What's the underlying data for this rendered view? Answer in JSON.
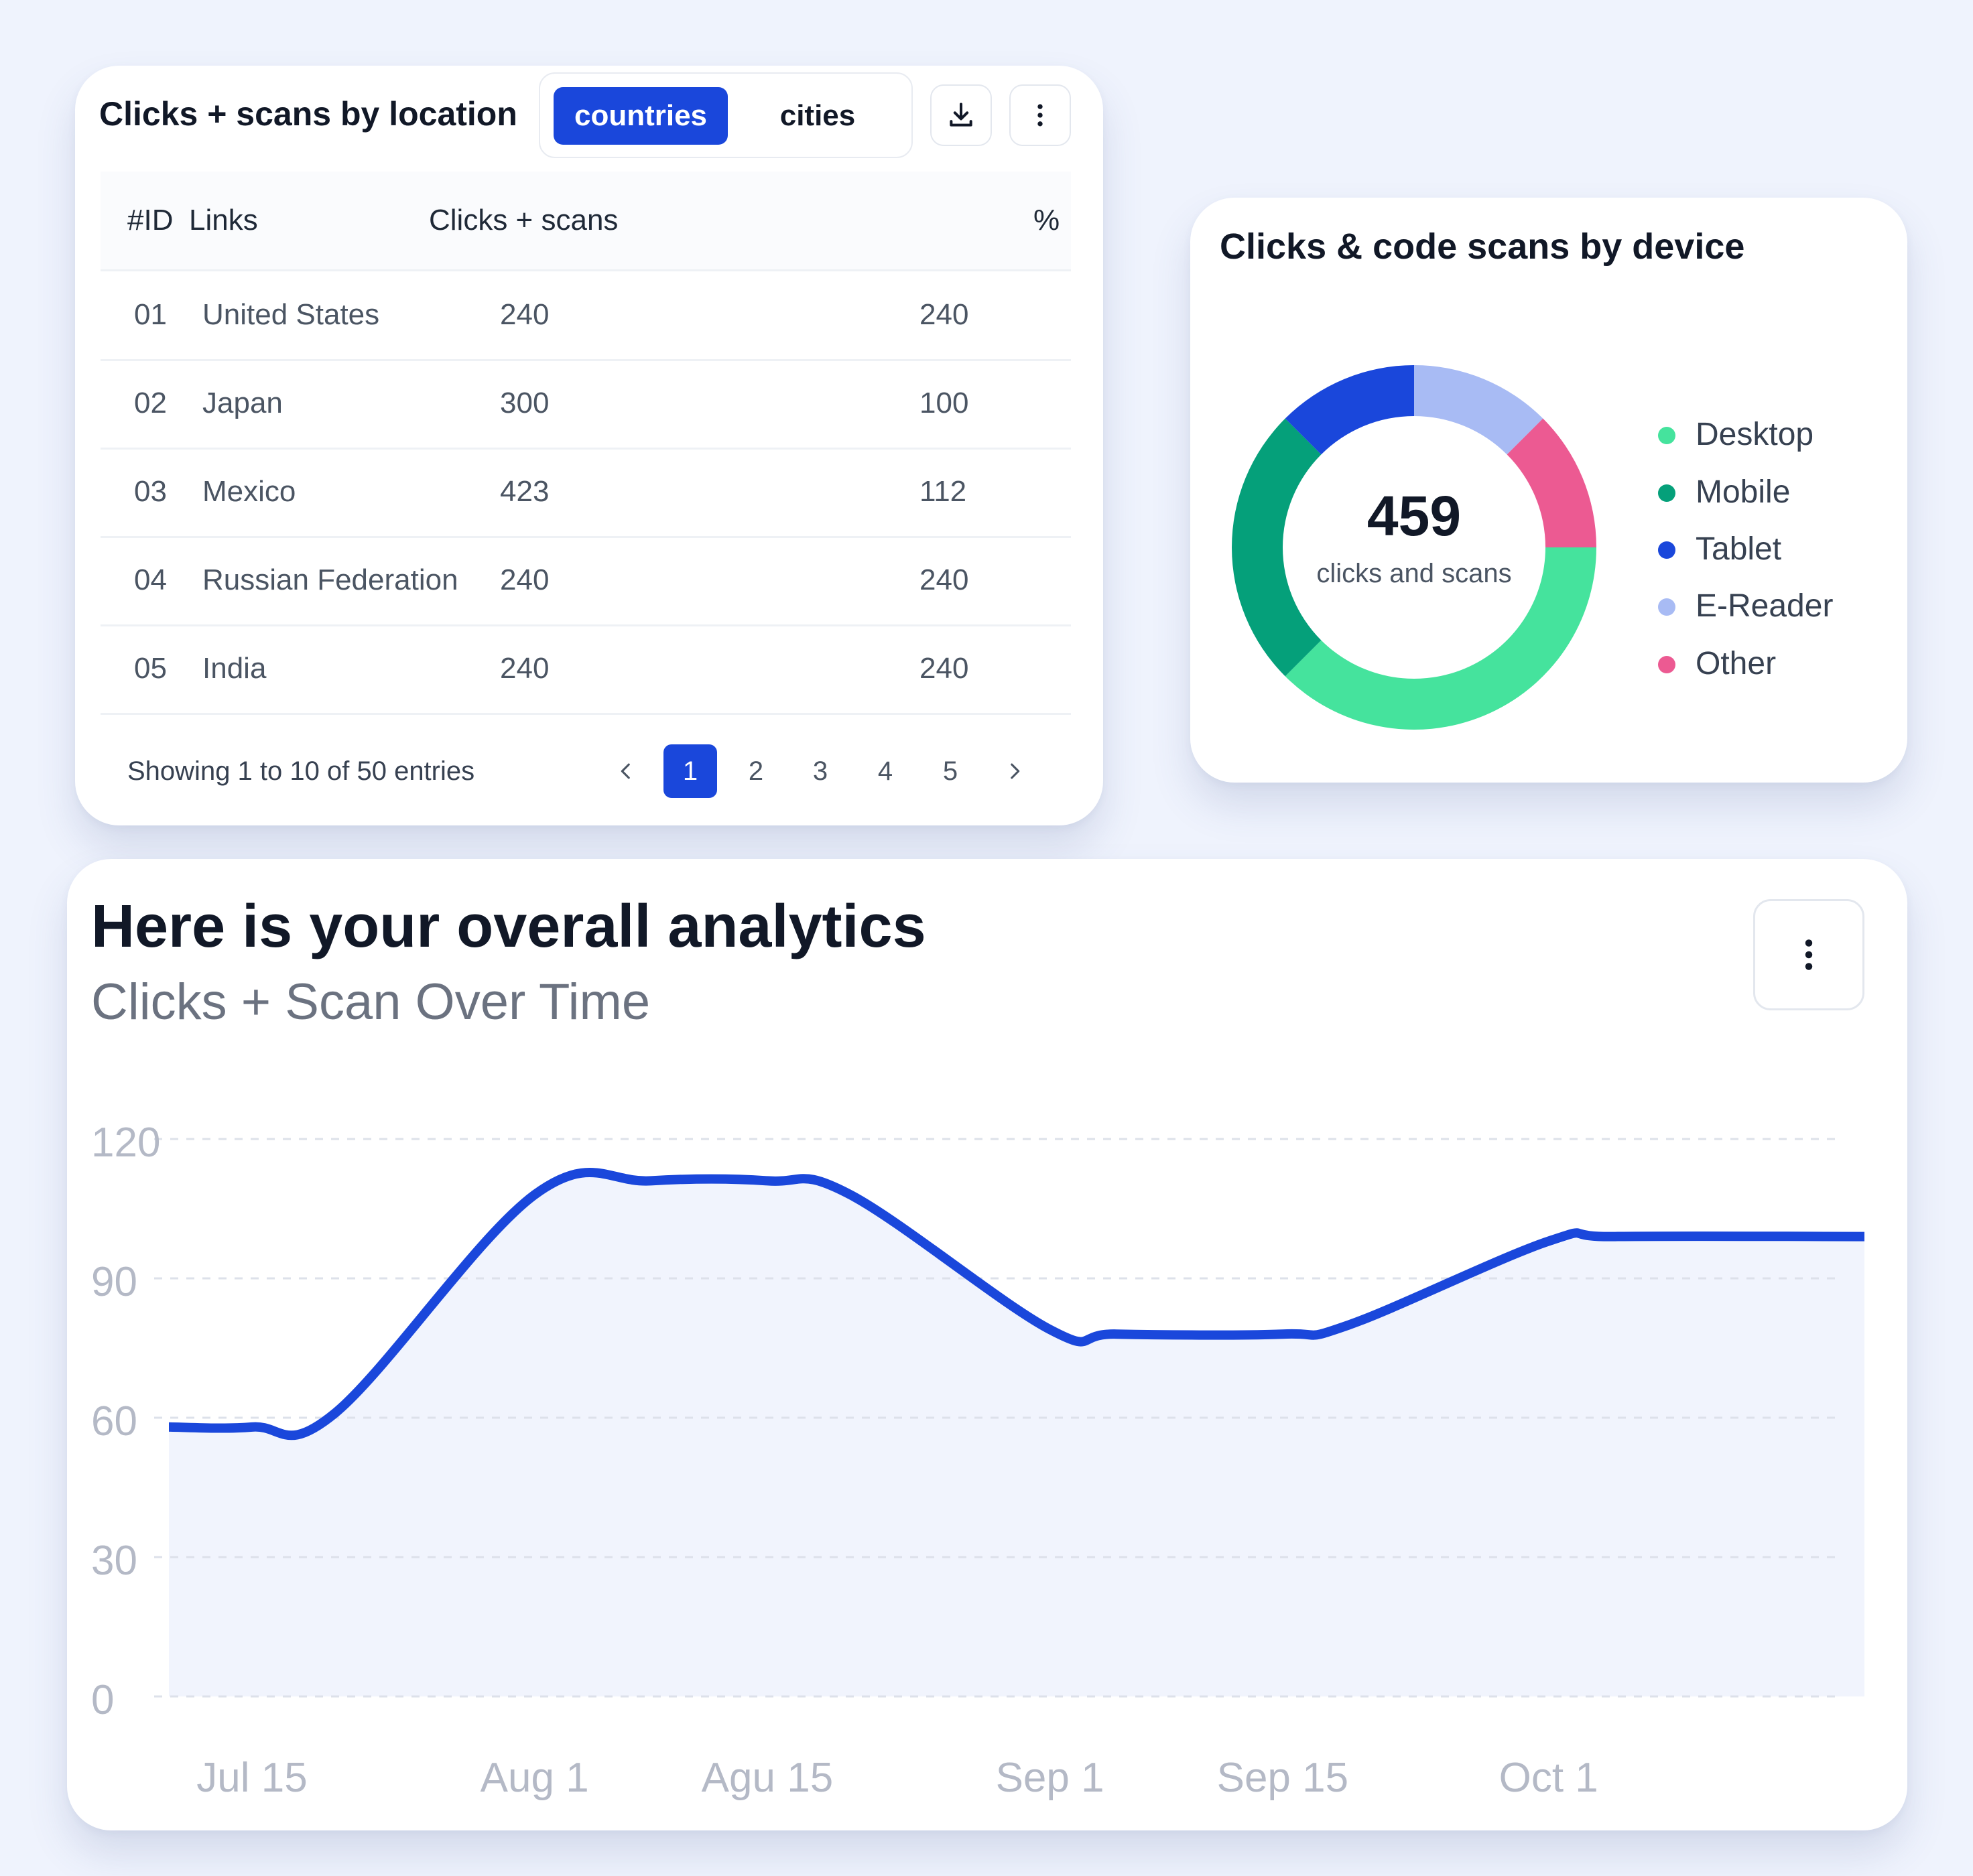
{
  "location_card": {
    "title": "Clicks + scans by location",
    "tabs": [
      {
        "label": "countries",
        "active": true
      },
      {
        "label": "cities",
        "active": false
      }
    ],
    "columns": {
      "id": "#ID",
      "links": "Links",
      "clicks": "Clicks + scans",
      "percent": "%"
    },
    "rows": [
      {
        "id": "01",
        "link": "United States",
        "clicks": "240",
        "percent": "240"
      },
      {
        "id": "02",
        "link": "Japan",
        "clicks": "300",
        "percent": "100"
      },
      {
        "id": "03",
        "link": "Mexico",
        "clicks": "423",
        "percent": "112"
      },
      {
        "id": "04",
        "link": "Russian Federation",
        "clicks": "240",
        "percent": "240"
      },
      {
        "id": "05",
        "link": "India",
        "clicks": "240",
        "percent": "240"
      }
    ],
    "footer_text": "Showing 1 to 10 of 50 entries",
    "pages": [
      "1",
      "2",
      "3",
      "4",
      "5"
    ],
    "active_page": "1",
    "icons": [
      "download-icon",
      "more-vertical-icon",
      "chevron-left-icon",
      "chevron-right-icon"
    ]
  },
  "device_card": {
    "title": "Clicks & code scans by device",
    "total": "459",
    "total_label": "clicks and scans",
    "segments": [
      {
        "name": "Desktop",
        "color": "#45e39d",
        "percent": 37.5
      },
      {
        "name": "Mobile",
        "color": "#05a07a",
        "percent": 25
      },
      {
        "name": "Tablet",
        "color": "#1a47db",
        "percent": 12.5
      },
      {
        "name": "E-Reader",
        "color": "#a8bbf4",
        "percent": 12.5
      },
      {
        "name": "Other",
        "color": "#ec5a92",
        "percent": 12.5
      }
    ]
  },
  "analytics_card": {
    "title": "Here is your overall analytics",
    "subtitle": "Clicks + Scan Over Time",
    "icons": [
      "more-vertical-icon"
    ]
  },
  "chart_data": {
    "type": "line",
    "x_labels": [
      "Jul 15",
      "Aug 1",
      "Agu 15",
      "Sep 1",
      "Sep 15",
      "Oct 1"
    ],
    "y_ticks": [
      120,
      90,
      60,
      30,
      0
    ],
    "ylim": [
      0,
      120
    ],
    "grid": true,
    "line_color": "#1a47db",
    "area_color": "#f1f4fd",
    "series": [
      {
        "points": [
          {
            "x": "Jul 10",
            "y": 58
          },
          {
            "x": "Jul 15",
            "y": 58
          },
          {
            "x": "Jul 20",
            "y": 61
          },
          {
            "x": "Aug 1",
            "y": 108
          },
          {
            "x": "Aug 8",
            "y": 111
          },
          {
            "x": "Agu 15",
            "y": 111
          },
          {
            "x": "Aug 20",
            "y": 108
          },
          {
            "x": "Sep 1",
            "y": 79
          },
          {
            "x": "Sep 5",
            "y": 78
          },
          {
            "x": "Sep 15",
            "y": 78
          },
          {
            "x": "Sep 19",
            "y": 80
          },
          {
            "x": "Oct 1",
            "y": 98
          },
          {
            "x": "Oct 5",
            "y": 99
          },
          {
            "x": "Oct 20",
            "y": 99
          }
        ]
      }
    ]
  }
}
